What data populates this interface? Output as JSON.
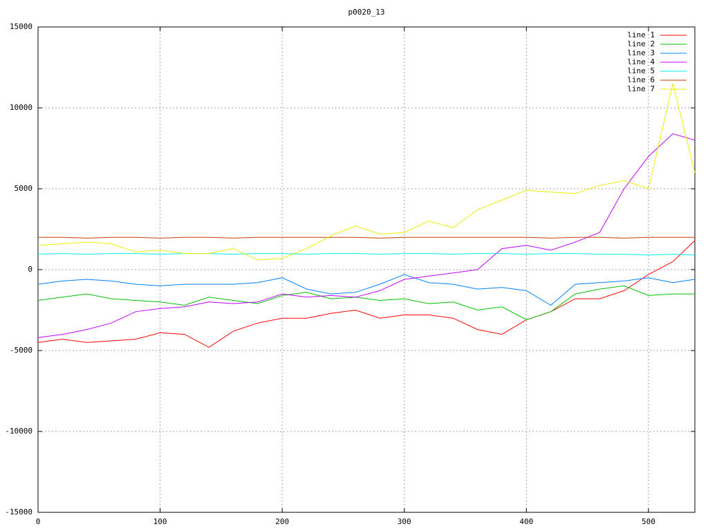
{
  "chart_data": {
    "type": "line",
    "title": "p0020_13",
    "x": [
      0,
      20,
      40,
      60,
      80,
      100,
      120,
      140,
      160,
      180,
      200,
      220,
      240,
      260,
      280,
      300,
      320,
      340,
      360,
      380,
      400,
      420,
      440,
      460,
      480,
      500,
      520,
      538
    ],
    "xlim": [
      0,
      538
    ],
    "xticks": [
      0,
      100,
      200,
      300,
      400,
      500
    ],
    "ylim": [
      -15000,
      15000
    ],
    "yticks": [
      -15000,
      -10000,
      -5000,
      0,
      5000,
      10000,
      15000
    ],
    "grid": true,
    "legend": "top-right",
    "series": [
      {
        "name": "line 1",
        "color": "#ff0000",
        "values": [
          -4500,
          -4300,
          -4500,
          -4400,
          -4300,
          -3900,
          -4000,
          -4800,
          -3800,
          -3300,
          -3000,
          -3000,
          -2700,
          -2500,
          -3000,
          -2800,
          -2800,
          -3000,
          -3700,
          -4000,
          -3100,
          -2600,
          -1800,
          -1800,
          -1300,
          -300,
          500,
          1800
        ]
      },
      {
        "name": "line 2",
        "color": "#00c000",
        "values": [
          -1900,
          -1700,
          -1500,
          -1800,
          -1900,
          -2000,
          -2200,
          -1700,
          -1900,
          -2100,
          -1600,
          -1400,
          -1800,
          -1700,
          -1900,
          -1800,
          -2100,
          -2000,
          -2500,
          -2300,
          -3100,
          -2600,
          -1500,
          -1200,
          -1000,
          -1600,
          -1500,
          -1500
        ]
      },
      {
        "name": "line 3",
        "color": "#0080ff",
        "values": [
          -900,
          -700,
          -600,
          -700,
          -900,
          -1000,
          -900,
          -900,
          -900,
          -800,
          -500,
          -1200,
          -1500,
          -1400,
          -900,
          -300,
          -800,
          -900,
          -1200,
          -1100,
          -1300,
          -2200,
          -900,
          -800,
          -700,
          -500,
          -800,
          -600
        ]
      },
      {
        "name": "line 4",
        "color": "#c000ff",
        "values": [
          -4200,
          -4000,
          -3700,
          -3300,
          -2600,
          -2400,
          -2300,
          -2000,
          -2100,
          -2000,
          -1500,
          -1700,
          -1600,
          -1700,
          -1300,
          -600,
          -400,
          -200,
          0,
          1300,
          1500,
          1200,
          1700,
          2300,
          5000,
          7000,
          8400,
          8000
        ]
      },
      {
        "name": "line 5",
        "color": "#00eeee",
        "values": [
          950,
          1000,
          950,
          1000,
          1000,
          950,
          1000,
          1000,
          950,
          1000,
          1000,
          950,
          1000,
          1000,
          950,
          1000,
          1000,
          950,
          1000,
          1000,
          950,
          1000,
          1000,
          950,
          950,
          900,
          950,
          900
        ]
      },
      {
        "name": "line 6",
        "color": "#c04000",
        "values": [
          2000,
          2000,
          1950,
          2000,
          2000,
          1950,
          2000,
          2000,
          1950,
          2000,
          2000,
          2000,
          2000,
          2000,
          1950,
          2000,
          2000,
          2000,
          2000,
          2000,
          2000,
          1950,
          2000,
          2000,
          1950,
          2000,
          2000,
          2000
        ]
      },
      {
        "name": "line 7",
        "color": "#eeee00",
        "values": [
          1500,
          1600,
          1700,
          1600,
          1100,
          1200,
          1000,
          1000,
          1300,
          600,
          700,
          1300,
          2100,
          2700,
          2200,
          2300,
          3000,
          2600,
          3700,
          4300,
          4900,
          4800,
          4700,
          5200,
          5500,
          5000,
          11500,
          6000
        ]
      }
    ]
  }
}
